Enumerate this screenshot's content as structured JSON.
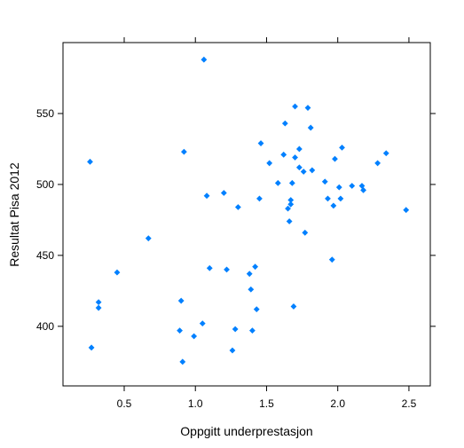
{
  "chart_data": {
    "type": "scatter",
    "xlabel": "Oppgitt underprestasjon",
    "ylabel": "Resultat Pisa 2012",
    "xlim": [
      0.07,
      2.65
    ],
    "ylim": [
      358,
      600
    ],
    "x_ticks": [
      0.5,
      1.0,
      1.5,
      2.0,
      2.5
    ],
    "x_tick_labels": [
      "0.5",
      "1.0",
      "1.5",
      "2.0",
      "2.5"
    ],
    "y_ticks": [
      400,
      450,
      500,
      550
    ],
    "y_tick_labels": [
      "400",
      "450",
      "500",
      "550"
    ],
    "grid": false,
    "point_color": "#0080ff",
    "points": [
      {
        "x": 0.26,
        "y": 516
      },
      {
        "x": 0.27,
        "y": 385
      },
      {
        "x": 0.32,
        "y": 417
      },
      {
        "x": 0.32,
        "y": 413
      },
      {
        "x": 0.45,
        "y": 438
      },
      {
        "x": 0.67,
        "y": 462
      },
      {
        "x": 0.89,
        "y": 397
      },
      {
        "x": 0.9,
        "y": 418
      },
      {
        "x": 0.91,
        "y": 375
      },
      {
        "x": 0.92,
        "y": 523
      },
      {
        "x": 0.99,
        "y": 393
      },
      {
        "x": 1.05,
        "y": 402
      },
      {
        "x": 1.06,
        "y": 588
      },
      {
        "x": 1.08,
        "y": 492
      },
      {
        "x": 1.1,
        "y": 441
      },
      {
        "x": 1.2,
        "y": 494
      },
      {
        "x": 1.22,
        "y": 440
      },
      {
        "x": 1.26,
        "y": 383
      },
      {
        "x": 1.28,
        "y": 398
      },
      {
        "x": 1.3,
        "y": 484
      },
      {
        "x": 1.38,
        "y": 437
      },
      {
        "x": 1.39,
        "y": 426
      },
      {
        "x": 1.4,
        "y": 397
      },
      {
        "x": 1.42,
        "y": 442
      },
      {
        "x": 1.43,
        "y": 412
      },
      {
        "x": 1.45,
        "y": 490
      },
      {
        "x": 1.46,
        "y": 529
      },
      {
        "x": 1.52,
        "y": 515
      },
      {
        "x": 1.58,
        "y": 501
      },
      {
        "x": 1.62,
        "y": 521
      },
      {
        "x": 1.63,
        "y": 543
      },
      {
        "x": 1.65,
        "y": 483
      },
      {
        "x": 1.66,
        "y": 474
      },
      {
        "x": 1.67,
        "y": 486
      },
      {
        "x": 1.67,
        "y": 489
      },
      {
        "x": 1.68,
        "y": 501
      },
      {
        "x": 1.69,
        "y": 414
      },
      {
        "x": 1.7,
        "y": 555
      },
      {
        "x": 1.7,
        "y": 519
      },
      {
        "x": 1.73,
        "y": 512
      },
      {
        "x": 1.73,
        "y": 525
      },
      {
        "x": 1.76,
        "y": 509
      },
      {
        "x": 1.77,
        "y": 466
      },
      {
        "x": 1.79,
        "y": 554
      },
      {
        "x": 1.81,
        "y": 540
      },
      {
        "x": 1.82,
        "y": 510
      },
      {
        "x": 1.91,
        "y": 502
      },
      {
        "x": 1.93,
        "y": 490
      },
      {
        "x": 1.96,
        "y": 447
      },
      {
        "x": 1.97,
        "y": 485
      },
      {
        "x": 1.98,
        "y": 518
      },
      {
        "x": 2.01,
        "y": 498
      },
      {
        "x": 2.02,
        "y": 490
      },
      {
        "x": 2.03,
        "y": 526
      },
      {
        "x": 2.1,
        "y": 499
      },
      {
        "x": 2.17,
        "y": 499
      },
      {
        "x": 2.18,
        "y": 496
      },
      {
        "x": 2.28,
        "y": 515
      },
      {
        "x": 2.34,
        "y": 522
      },
      {
        "x": 2.48,
        "y": 482
      }
    ]
  }
}
